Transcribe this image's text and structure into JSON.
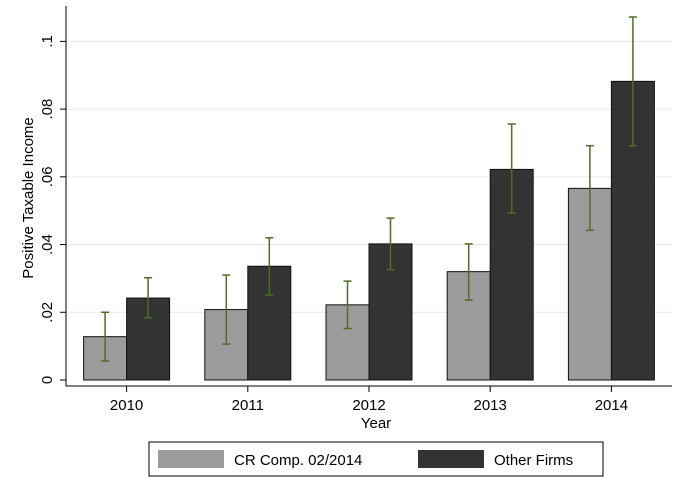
{
  "chart_data": {
    "type": "bar",
    "xlabel": "Year",
    "ylabel": "Positive Taxable Income",
    "categories": [
      "2010",
      "2011",
      "2012",
      "2013",
      "2014"
    ],
    "ylim": [
      0,
      0.105
    ],
    "yticks": [
      {
        "value": 0,
        "label": "0"
      },
      {
        "value": 0.02,
        "label": ".02"
      },
      {
        "value": 0.04,
        "label": ".04"
      },
      {
        "value": 0.06,
        "label": ".06"
      },
      {
        "value": 0.08,
        "label": ".08"
      },
      {
        "value": 0.1,
        "label": ".1"
      }
    ],
    "grid": true,
    "legend_position": "bottom",
    "series": [
      {
        "name": "CR Comp. 02/2014",
        "color": "#9b9b9b",
        "values": [
          0.0128,
          0.0208,
          0.0222,
          0.032,
          0.0566
        ],
        "ci_low": [
          0.0056,
          0.0106,
          0.0152,
          0.0236,
          0.0442
        ],
        "ci_high": [
          0.02,
          0.031,
          0.0292,
          0.0402,
          0.0692
        ]
      },
      {
        "name": "Other Firms",
        "color": "#333333",
        "values": [
          0.0242,
          0.0336,
          0.0402,
          0.0622,
          0.0882
        ],
        "ci_low": [
          0.0184,
          0.0251,
          0.0326,
          0.0493,
          0.0692
        ],
        "ci_high": [
          0.0302,
          0.042,
          0.0478,
          0.0756,
          0.1072
        ]
      }
    ],
    "errorbar_color": "#4d6e24"
  }
}
